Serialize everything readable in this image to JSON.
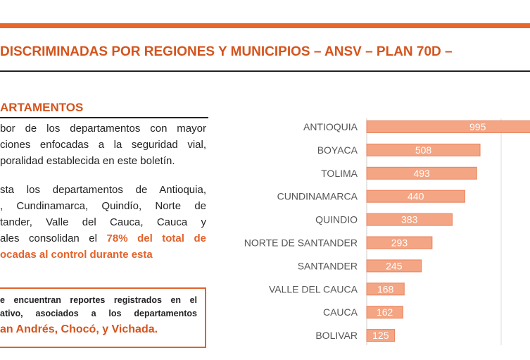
{
  "header": {
    "title": "DISCRIMINADAS POR REGIONES Y MUNICIPIOS – ANSV – PLAN 70D –"
  },
  "section": {
    "title": "ARTAMENTOS"
  },
  "paragraphs": [
    {
      "lines": [
        "bor de los departamentos con mayor",
        "ciones enfocadas a la seguridad vial,",
        "poralidad establecida en este boletín."
      ]
    },
    {
      "lines": [
        "sta los departamentos de Antioquia,",
        ", Cundinamarca, Quindío, Norte de",
        "tander, Valle del Cauca, Cauca y",
        [
          "ales consolidan el ",
          "78% del total de"
        ],
        "ocadas al control durante esta"
      ]
    }
  ],
  "note": {
    "lines": [
      "e encuentran reportes registrados en el",
      "ativo, asociados a los departamentos",
      "an Andrés, Chocó, y Vichada."
    ]
  },
  "chart_data": {
    "type": "bar",
    "orientation": "horizontal",
    "color": "#f4a584",
    "categories": [
      "ANTIOQUIA",
      "BOYACA",
      "TOLIMA",
      "CUNDINAMARCA",
      "QUINDIO",
      "NORTE DE SANTANDER",
      "SANTANDER",
      "VALLE DEL CAUCA",
      "CAUCA",
      "BOLIVAR"
    ],
    "values": [
      995,
      508,
      493,
      440,
      383,
      293,
      245,
      168,
      162,
      125
    ]
  }
}
